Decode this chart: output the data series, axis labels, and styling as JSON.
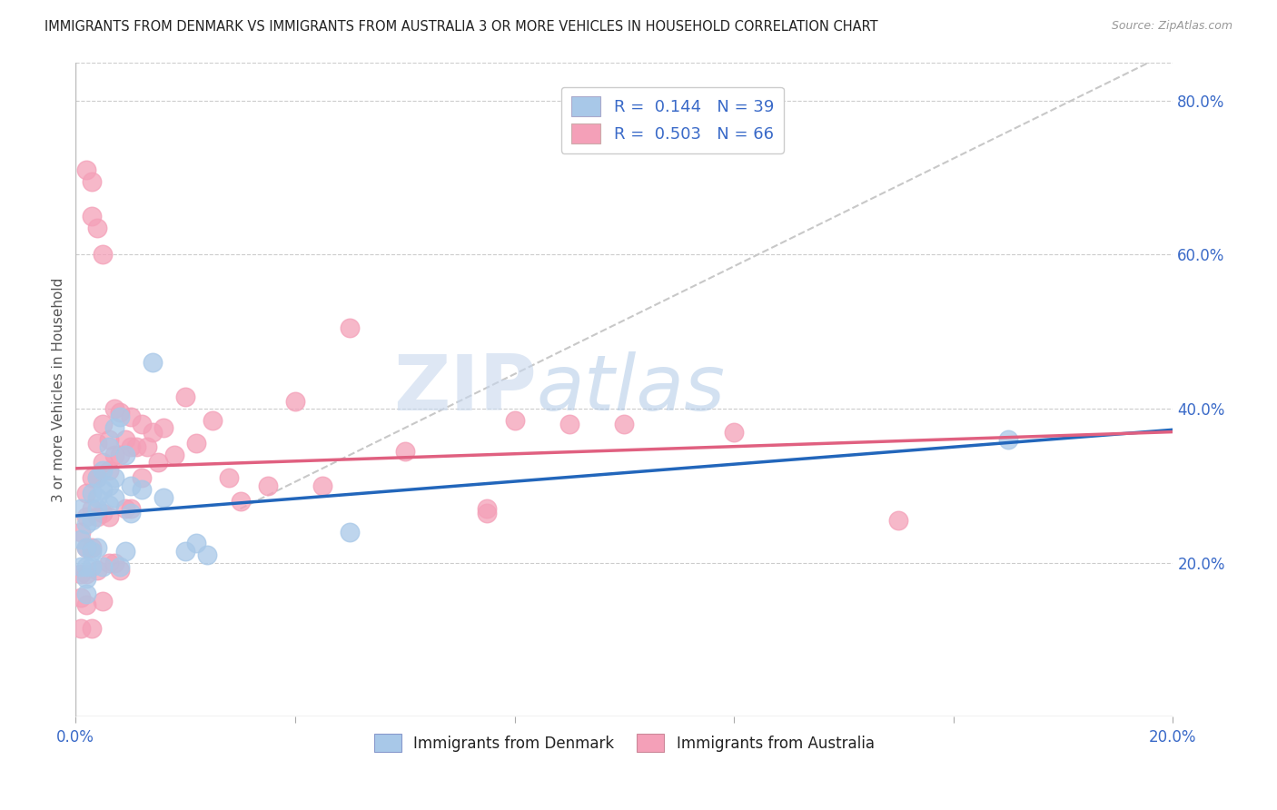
{
  "title": "IMMIGRANTS FROM DENMARK VS IMMIGRANTS FROM AUSTRALIA 3 OR MORE VEHICLES IN HOUSEHOLD CORRELATION CHART",
  "source": "Source: ZipAtlas.com",
  "ylabel": "3 or more Vehicles in Household",
  "xlim": [
    0.0,
    0.2
  ],
  "ylim": [
    0.0,
    0.85
  ],
  "right_yticks": [
    0.2,
    0.4,
    0.6,
    0.8
  ],
  "right_yticklabels": [
    "20.0%",
    "40.0%",
    "60.0%",
    "80.0%"
  ],
  "xticks": [
    0.0,
    0.04,
    0.08,
    0.12,
    0.16,
    0.2
  ],
  "xticklabels": [
    "0.0%",
    "",
    "",
    "",
    "",
    "20.0%"
  ],
  "legend_denmark_R": "0.144",
  "legend_denmark_N": "39",
  "legend_australia_R": "0.503",
  "legend_australia_N": "66",
  "denmark_color": "#a8c8e8",
  "australia_color": "#f4a0b8",
  "denmark_line_color": "#2266bb",
  "australia_line_color": "#e06080",
  "diagonal_line_color": "#c8c8c8",
  "background_color": "#ffffff",
  "watermark_zip": "ZIP",
  "watermark_atlas": "atlas",
  "denmark_x": [
    0.001,
    0.001,
    0.001,
    0.002,
    0.002,
    0.002,
    0.002,
    0.002,
    0.003,
    0.003,
    0.003,
    0.003,
    0.004,
    0.004,
    0.004,
    0.004,
    0.005,
    0.005,
    0.005,
    0.006,
    0.006,
    0.006,
    0.007,
    0.007,
    0.007,
    0.008,
    0.008,
    0.009,
    0.009,
    0.01,
    0.01,
    0.012,
    0.014,
    0.016,
    0.02,
    0.022,
    0.024,
    0.17,
    0.05
  ],
  "denmark_y": [
    0.27,
    0.23,
    0.195,
    0.25,
    0.22,
    0.195,
    0.18,
    0.16,
    0.29,
    0.255,
    0.215,
    0.195,
    0.31,
    0.285,
    0.27,
    0.22,
    0.32,
    0.295,
    0.195,
    0.35,
    0.3,
    0.275,
    0.375,
    0.31,
    0.285,
    0.39,
    0.195,
    0.34,
    0.215,
    0.3,
    0.265,
    0.295,
    0.46,
    0.285,
    0.215,
    0.225,
    0.21,
    0.36,
    0.24
  ],
  "australia_x": [
    0.001,
    0.001,
    0.001,
    0.001,
    0.002,
    0.002,
    0.002,
    0.002,
    0.002,
    0.003,
    0.003,
    0.003,
    0.003,
    0.004,
    0.004,
    0.004,
    0.004,
    0.005,
    0.005,
    0.005,
    0.005,
    0.006,
    0.006,
    0.006,
    0.006,
    0.007,
    0.007,
    0.007,
    0.008,
    0.008,
    0.008,
    0.009,
    0.009,
    0.01,
    0.01,
    0.01,
    0.011,
    0.012,
    0.012,
    0.013,
    0.014,
    0.015,
    0.016,
    0.018,
    0.02,
    0.022,
    0.025,
    0.028,
    0.03,
    0.035,
    0.04,
    0.045,
    0.05,
    0.06,
    0.075,
    0.08,
    0.09,
    0.1,
    0.12,
    0.15,
    0.002,
    0.003,
    0.003,
    0.004,
    0.005,
    0.075
  ],
  "australia_y": [
    0.24,
    0.185,
    0.155,
    0.115,
    0.29,
    0.26,
    0.22,
    0.185,
    0.145,
    0.31,
    0.27,
    0.22,
    0.115,
    0.355,
    0.31,
    0.26,
    0.19,
    0.38,
    0.33,
    0.265,
    0.15,
    0.36,
    0.32,
    0.26,
    0.2,
    0.4,
    0.34,
    0.2,
    0.395,
    0.34,
    0.19,
    0.36,
    0.27,
    0.39,
    0.35,
    0.27,
    0.35,
    0.38,
    0.31,
    0.35,
    0.37,
    0.33,
    0.375,
    0.34,
    0.415,
    0.355,
    0.385,
    0.31,
    0.28,
    0.3,
    0.41,
    0.3,
    0.505,
    0.345,
    0.265,
    0.385,
    0.38,
    0.38,
    0.37,
    0.255,
    0.71,
    0.695,
    0.65,
    0.635,
    0.6,
    0.27
  ]
}
